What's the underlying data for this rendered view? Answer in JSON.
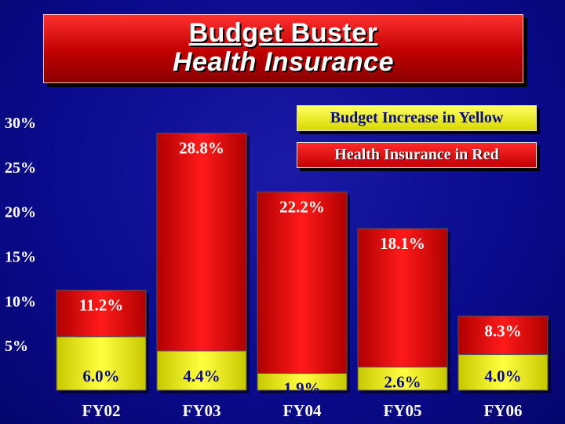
{
  "title": {
    "line1": "Budget Buster",
    "line2": "Health Insurance"
  },
  "legend": {
    "yellow_label": "Budget Increase in Yellow",
    "red_label": "Health Insurance in Red"
  },
  "colors": {
    "yellow": "#ffff33",
    "red": "#e00000",
    "background": "#0a0a8c",
    "label_dark": "#0a0a8c"
  },
  "chart_data": {
    "type": "bar",
    "categories": [
      "FY02",
      "FY03",
      "FY04",
      "FY05",
      "FY06"
    ],
    "series": [
      {
        "name": "Budget Increase in Yellow",
        "values": [
          6.0,
          4.4,
          1.9,
          2.6,
          4.0
        ],
        "labels": [
          "6.0%",
          "4.4%",
          "1.9%",
          "2.6%",
          "4.0%"
        ]
      },
      {
        "name": "Health Insurance in Red",
        "values": [
          11.2,
          28.8,
          22.2,
          18.1,
          8.3
        ],
        "labels": [
          "11.2%",
          "28.8%",
          "22.2%",
          "18.1%",
          "8.3%"
        ]
      }
    ],
    "yticks": [
      "5%",
      "10%",
      "15%",
      "20%",
      "25%",
      "30%"
    ],
    "ytick_values": [
      5,
      10,
      15,
      20,
      25,
      30
    ],
    "ylim": [
      0,
      30
    ],
    "grid": false,
    "legend_position": "top-right"
  }
}
